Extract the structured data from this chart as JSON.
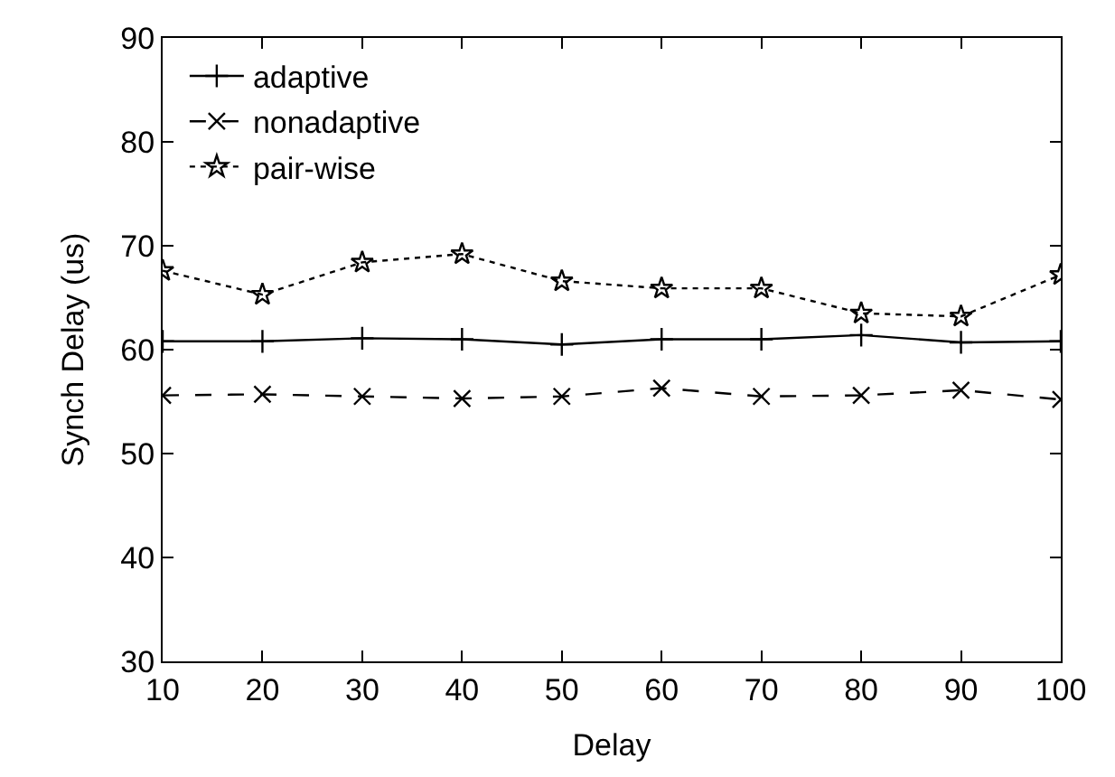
{
  "chart_data": {
    "type": "line",
    "xlabel": "Delay",
    "ylabel": "Synch Delay (us)",
    "x": [
      10,
      20,
      30,
      40,
      50,
      60,
      70,
      80,
      90,
      100
    ],
    "xlim": [
      10,
      100
    ],
    "xticks": [
      10,
      20,
      30,
      40,
      50,
      60,
      70,
      80,
      90,
      100
    ],
    "ylim": [
      30,
      90
    ],
    "yticks": [
      30,
      40,
      50,
      60,
      70,
      80,
      90
    ],
    "grid": false,
    "legend": "top left",
    "series": [
      {
        "name": "adaptive",
        "color": "#000000",
        "marker": "cross",
        "line_style": "solid",
        "values": [
          60.8,
          60.8,
          61.1,
          61.0,
          60.5,
          61.0,
          61.0,
          61.4,
          60.7,
          60.8
        ]
      },
      {
        "name": "nonadaptive",
        "color": "#000000",
        "marker": "x",
        "line_style": "dashed",
        "values": [
          55.6,
          55.7,
          55.5,
          55.3,
          55.5,
          56.3,
          55.5,
          55.6,
          56.1,
          55.2
        ]
      },
      {
        "name": "pair-wise",
        "color": "#000000",
        "marker": "star",
        "line_style": "dotted",
        "values": [
          67.6,
          65.3,
          68.4,
          69.2,
          66.6,
          65.9,
          65.9,
          63.5,
          63.2,
          67.2
        ]
      }
    ]
  }
}
